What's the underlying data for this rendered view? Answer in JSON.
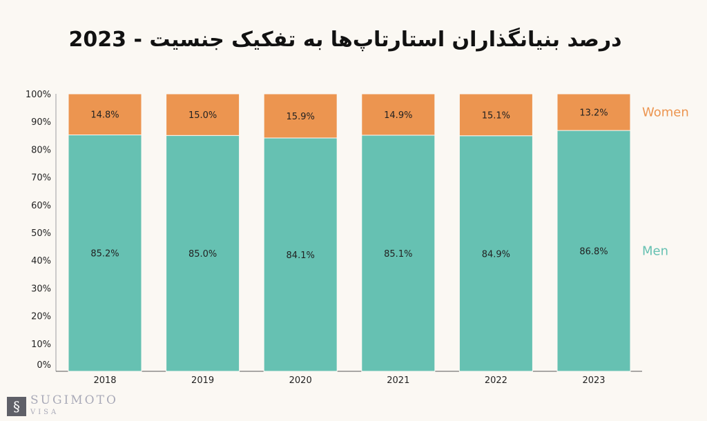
{
  "chart_data": {
    "type": "bar",
    "stacked": true,
    "title": "درصد بنیانگذاران استارتاپ‌ها به تفکیک جنسیت - 2023",
    "categories": [
      "2018",
      "2019",
      "2020",
      "2021",
      "2022",
      "2023"
    ],
    "series": [
      {
        "name": "Men",
        "color": "#66c1b2",
        "values": [
          85.2,
          85.0,
          84.1,
          85.1,
          84.9,
          86.8
        ],
        "labels": [
          "85.2%",
          "85.0%",
          "84.1%",
          "85.1%",
          "84.9%",
          "86.8%"
        ]
      },
      {
        "name": "Women",
        "color": "#ec9550",
        "values": [
          14.8,
          15.0,
          15.9,
          14.9,
          15.1,
          13.2
        ],
        "labels": [
          "14.8%",
          "15.0%",
          "15.9%",
          "14.9%",
          "15.1%",
          "13.2%"
        ]
      }
    ],
    "yticks": [
      "0%",
      "10%",
      "20%",
      "30%",
      "40%",
      "50%",
      "60%",
      "70%",
      "80%",
      "90%",
      "100%"
    ],
    "ylim": [
      0,
      100
    ],
    "grid": false,
    "legend": "right"
  },
  "logo": {
    "name": "SUGIMOTO",
    "sub": "VISA"
  }
}
